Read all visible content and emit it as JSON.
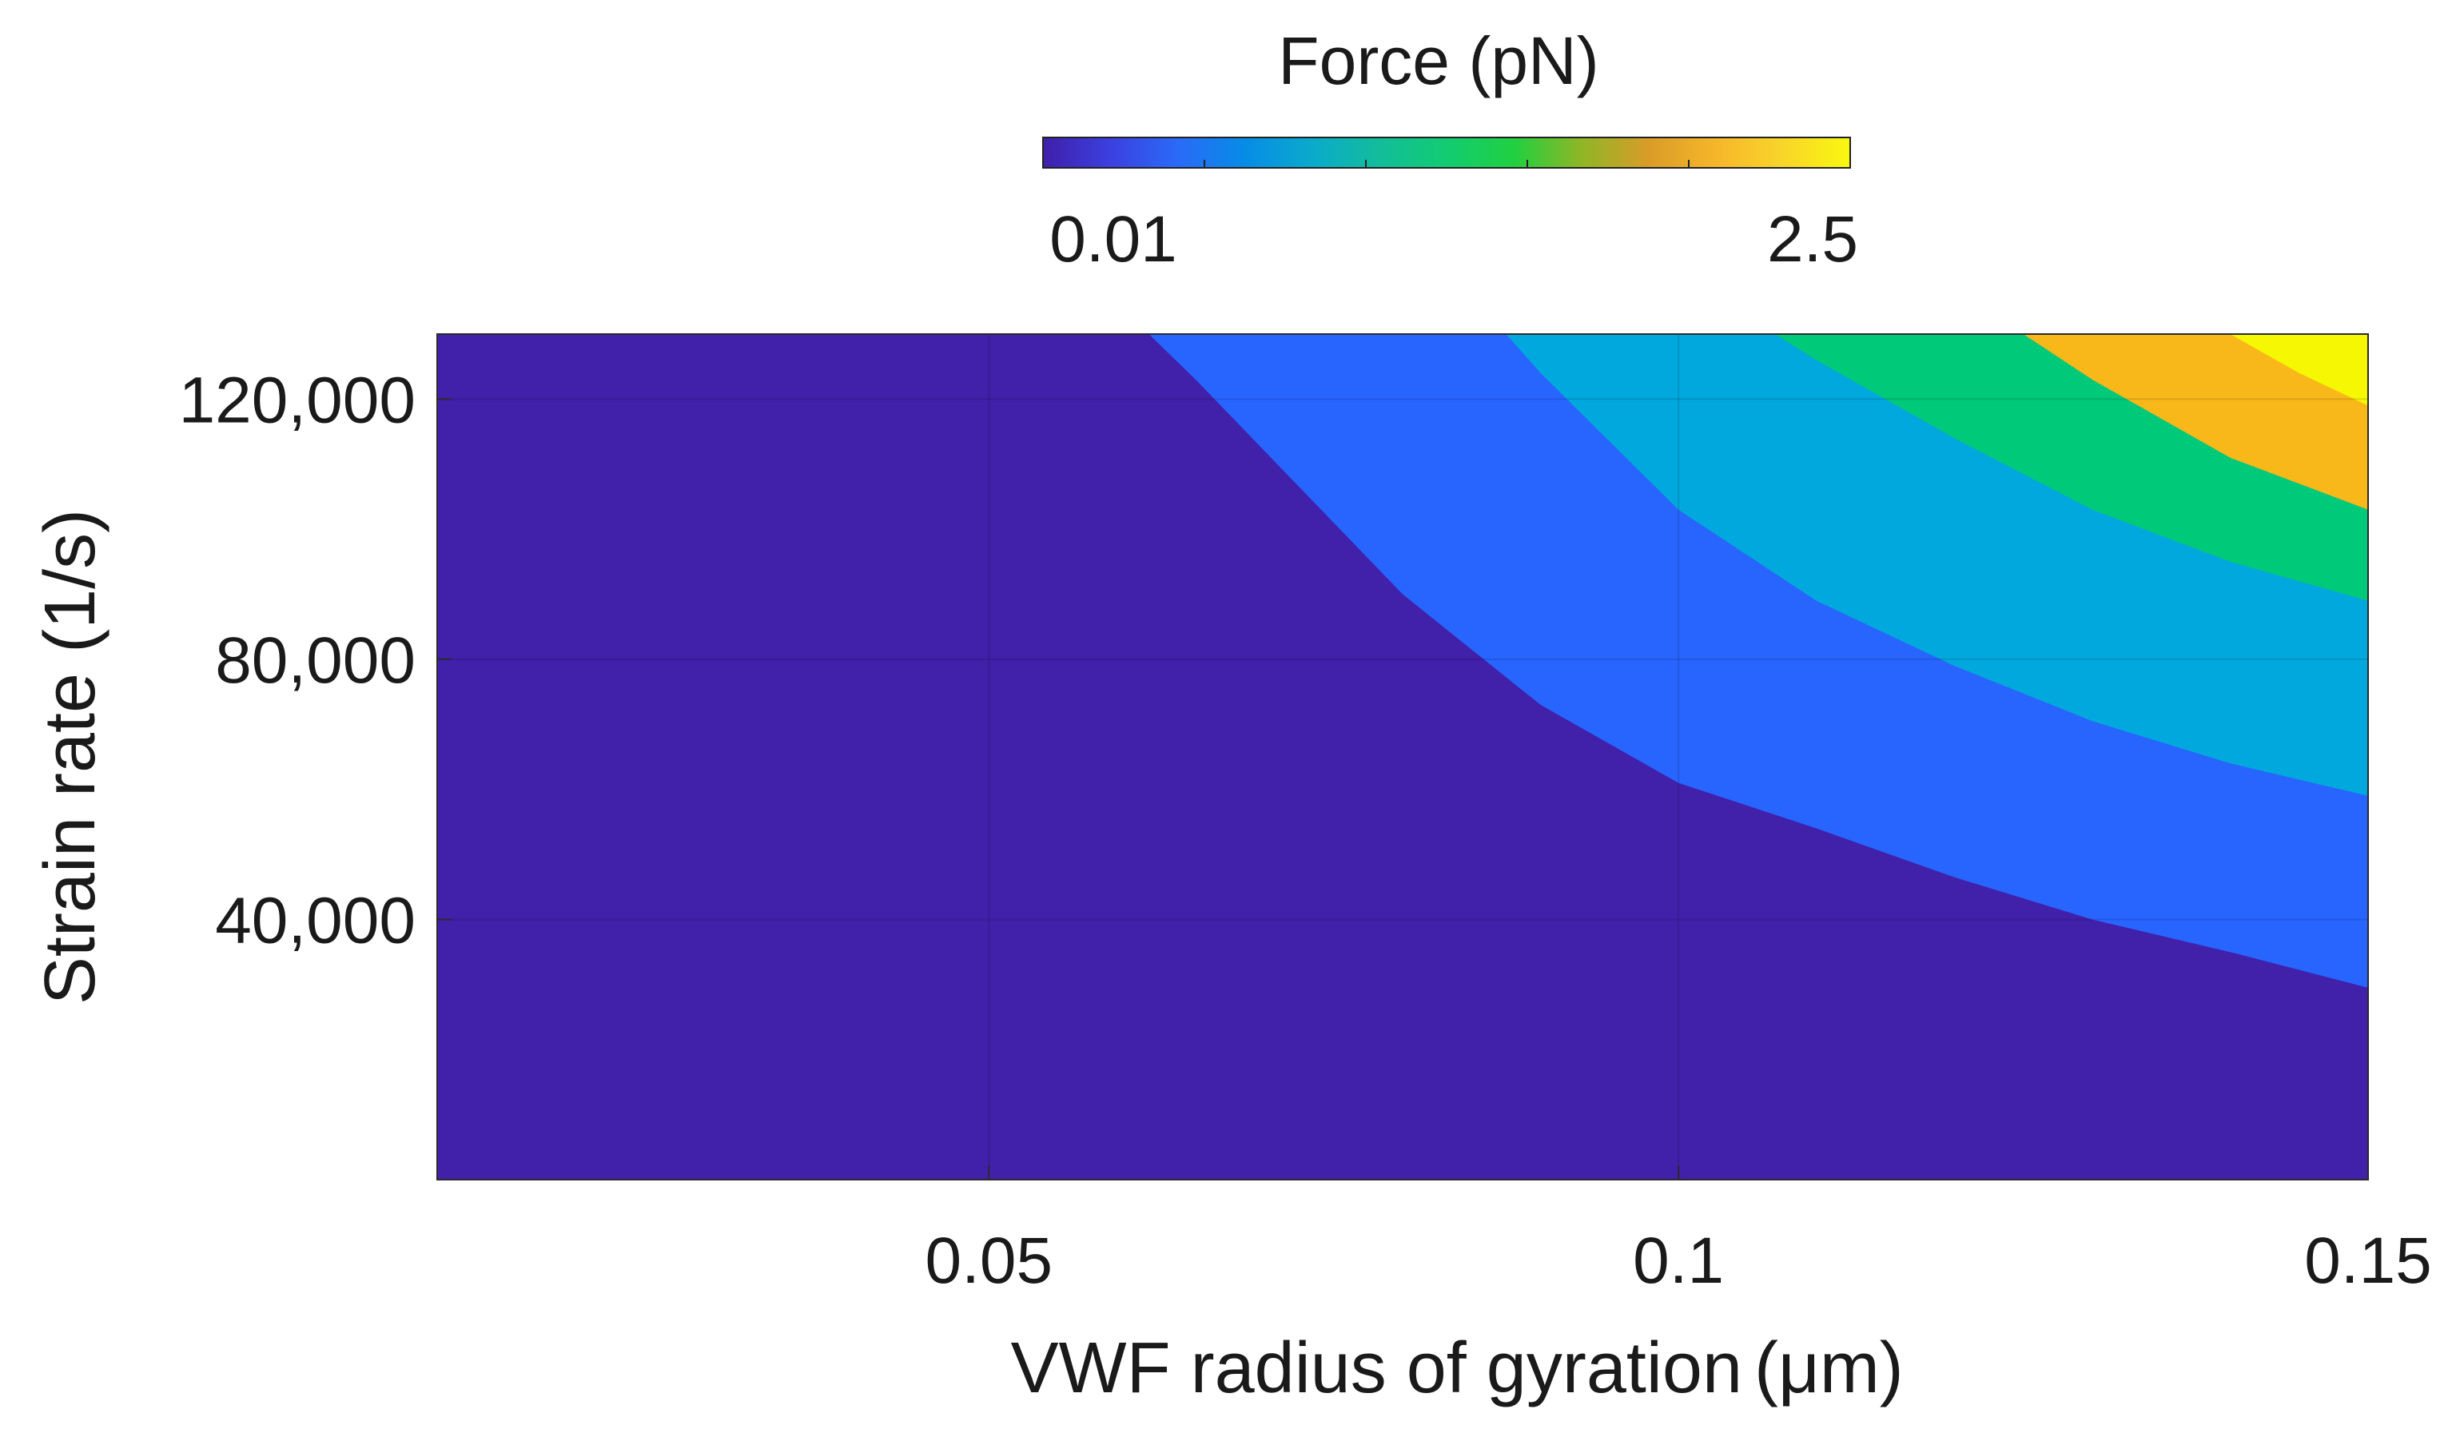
{
  "chart_data": {
    "type": "filled-contour",
    "title": "",
    "xlabel": "VWF radius of gyration",
    "xlabel_unit": "(μm)",
    "ylabel": "Strain rate (1/s)",
    "xlim": [
      0.01,
      0.15
    ],
    "ylim": [
      0,
      130000
    ],
    "xticks": [
      0.05,
      0.1,
      0.15
    ],
    "xtick_labels": [
      "0.05",
      "0.1",
      "0.15"
    ],
    "yticks": [
      40000,
      80000,
      120000
    ],
    "ytick_labels": [
      "40,000",
      "80,000",
      "120,000"
    ],
    "grid": true,
    "colorbar": {
      "label": "Force (pN)",
      "location": "top",
      "min_label": "0.01",
      "max_label": "2.5",
      "stops": [
        "#3F1FA9",
        "#3B40E0",
        "#2A6AF8",
        "#078CE6",
        "#0AAACC",
        "#12BD9A",
        "#12CC72",
        "#20D040",
        "#8FB626",
        "#D99C28",
        "#F6B62A",
        "#F9D52A",
        "#F9F80F"
      ]
    },
    "regions": [
      {
        "level": "0.01",
        "color": "#4120AA"
      },
      {
        "level": "0.05",
        "color": "#2865FF"
      },
      {
        "level": "0.25",
        "color": "#00A8DD"
      },
      {
        "level": "0.60",
        "color": "#00C97A"
      },
      {
        "level": "1.20",
        "color": "#F9B81A"
      },
      {
        "level": "2.00",
        "color": "#F6F702"
      }
    ],
    "contour_boundaries": [
      {
        "name": "boundary-1",
        "points": [
          [
            0.0616,
            130000
          ],
          [
            0.065,
            123000
          ],
          [
            0.07,
            112000
          ],
          [
            0.08,
            90000
          ],
          [
            0.09,
            73000
          ],
          [
            0.1,
            61000
          ],
          [
            0.11,
            54000
          ],
          [
            0.12,
            46500
          ],
          [
            0.13,
            40000
          ],
          [
            0.14,
            35000
          ],
          [
            0.15,
            29500
          ]
        ]
      },
      {
        "name": "boundary-2",
        "points": [
          [
            0.0875,
            130000
          ],
          [
            0.09,
            124000
          ],
          [
            0.1,
            103000
          ],
          [
            0.11,
            89000
          ],
          [
            0.12,
            79000
          ],
          [
            0.13,
            70500
          ],
          [
            0.14,
            64000
          ],
          [
            0.15,
            59000
          ]
        ]
      },
      {
        "name": "boundary-3",
        "points": [
          [
            0.107,
            130000
          ],
          [
            0.11,
            126000
          ],
          [
            0.12,
            114000
          ],
          [
            0.13,
            103000
          ],
          [
            0.14,
            95000
          ],
          [
            0.15,
            89000
          ]
        ]
      },
      {
        "name": "boundary-4",
        "points": [
          [
            0.125,
            130000
          ],
          [
            0.13,
            123000
          ],
          [
            0.14,
            111000
          ],
          [
            0.15,
            103000
          ]
        ]
      },
      {
        "name": "boundary-5",
        "points": [
          [
            0.14,
            130000
          ],
          [
            0.145,
            124000
          ],
          [
            0.15,
            119000
          ]
        ]
      }
    ]
  }
}
